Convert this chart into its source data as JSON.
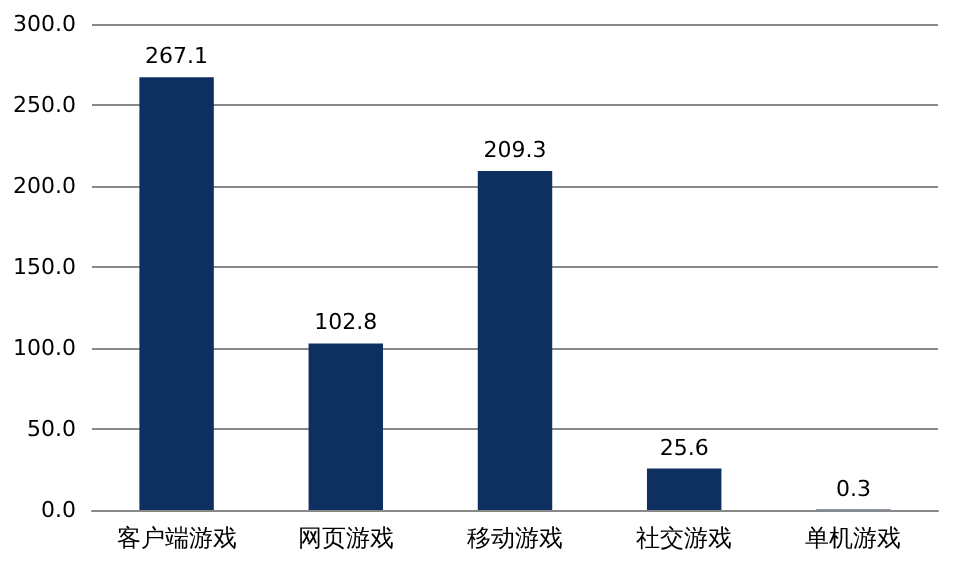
{
  "chart_data": {
    "type": "bar",
    "categories": [
      "客户端游戏",
      "网页游戏",
      "移动游戏",
      "社交游戏",
      "单机游戏"
    ],
    "values": [
      267.1,
      102.8,
      209.3,
      25.6,
      0.3
    ],
    "color": "#0d3060",
    "ylim": [
      0,
      300
    ],
    "yticks": [
      {
        "value": 0,
        "label": "0.0"
      },
      {
        "value": 50,
        "label": "50.0"
      },
      {
        "value": 100,
        "label": "100.0"
      },
      {
        "value": 150,
        "label": "150.0"
      },
      {
        "value": 200,
        "label": "200.0"
      },
      {
        "value": 250,
        "label": "250.0"
      },
      {
        "value": 300,
        "label": "300.0"
      }
    ],
    "grid": "y",
    "data_labels": true
  }
}
